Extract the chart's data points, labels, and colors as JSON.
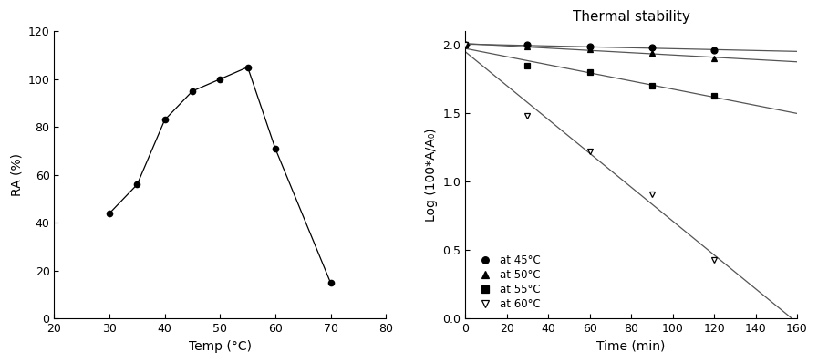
{
  "left_x": [
    30,
    35,
    40,
    45,
    50,
    55,
    60,
    70
  ],
  "left_y": [
    44,
    56,
    83,
    95,
    100,
    105,
    71,
    15
  ],
  "left_xlabel": "Temp (°C)",
  "left_ylabel": "RA (%)",
  "left_xlim": [
    20,
    80
  ],
  "left_ylim": [
    0,
    120
  ],
  "left_xticks": [
    20,
    30,
    40,
    50,
    60,
    70,
    80
  ],
  "left_yticks": [
    0,
    20,
    40,
    60,
    80,
    100,
    120
  ],
  "right_title": "Thermal stability",
  "right_xlabel": "Time (min)",
  "right_ylabel": "Log (100*A/A₀)",
  "right_xlim": [
    0,
    160
  ],
  "right_ylim": [
    0.0,
    2.1
  ],
  "right_xticks": [
    0,
    20,
    40,
    60,
    80,
    100,
    120,
    140,
    160
  ],
  "right_yticks": [
    0.0,
    0.5,
    1.0,
    1.5,
    2.0
  ],
  "series": [
    {
      "label": "at 45°C",
      "marker": "o",
      "x": [
        0,
        30,
        60,
        90,
        120
      ],
      "y": [
        2.0,
        2.0,
        1.99,
        1.98,
        1.96
      ]
    },
    {
      "label": "at 50°C",
      "marker": "^",
      "x": [
        0,
        30,
        60,
        90,
        120
      ],
      "y": [
        2.0,
        1.99,
        1.97,
        1.94,
        1.9
      ]
    },
    {
      "label": "at 55°C",
      "marker": "s",
      "x": [
        0,
        30,
        60,
        90,
        120
      ],
      "y": [
        2.0,
        1.85,
        1.8,
        1.7,
        1.63
      ]
    },
    {
      "label": "at 60°C",
      "marker": "v",
      "x": [
        0,
        30,
        60,
        90,
        120
      ],
      "y": [
        2.0,
        1.48,
        1.22,
        0.91,
        0.43
      ]
    }
  ],
  "marker_fill_colors": [
    "black",
    "black",
    "black",
    "white"
  ],
  "marker_edge_colors": [
    "black",
    "black",
    "black",
    "black"
  ],
  "marker_sizes": [
    5,
    5,
    5,
    5
  ],
  "line_color": "#555555",
  "line_width": 0.9
}
